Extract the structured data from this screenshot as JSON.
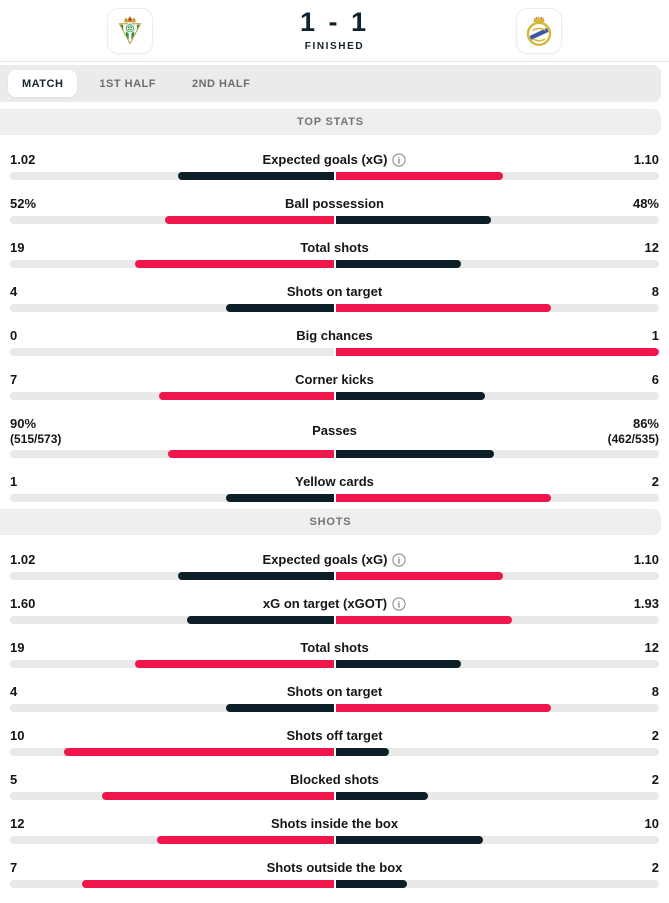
{
  "header": {
    "score": "1 - 1",
    "status": "FINISHED",
    "home_team_icon": "real-betis-crest-icon",
    "away_team_icon": "real-madrid-crest-icon"
  },
  "tabs": [
    {
      "label": "MATCH",
      "active": true
    },
    {
      "label": "1ST HALF",
      "active": false
    },
    {
      "label": "2ND HALF",
      "active": false
    }
  ],
  "colors": {
    "accent_red": "#ef164c",
    "accent_dark": "#0c1f28",
    "track": "#e9e9e9"
  },
  "icons": {
    "info": "info-circle-icon"
  },
  "sections": [
    {
      "title": "TOP STATS",
      "rows": [
        {
          "label": "Expected goals (xG)",
          "info": true,
          "left": "1.02",
          "right": "1.10",
          "left_num": 1.02,
          "right_num": 1.1
        },
        {
          "label": "Ball possession",
          "left": "52%",
          "right": "48%",
          "left_num": 52,
          "right_num": 48
        },
        {
          "label": "Total shots",
          "left": "19",
          "right": "12",
          "left_num": 19,
          "right_num": 12
        },
        {
          "label": "Shots on target",
          "left": "4",
          "right": "8",
          "left_num": 4,
          "right_num": 8
        },
        {
          "label": "Big chances",
          "left": "0",
          "right": "1",
          "left_num": 0,
          "right_num": 1
        },
        {
          "label": "Corner kicks",
          "left": "7",
          "right": "6",
          "left_num": 7,
          "right_num": 6
        },
        {
          "label": "Passes",
          "left": "90%",
          "left_sub": "(515/573)",
          "right": "86%",
          "right_sub": "(462/535)",
          "left_num": 90,
          "right_num": 86
        },
        {
          "label": "Yellow cards",
          "left": "1",
          "right": "2",
          "left_num": 1,
          "right_num": 2
        }
      ]
    },
    {
      "title": "SHOTS",
      "rows": [
        {
          "label": "Expected goals (xG)",
          "info": true,
          "left": "1.02",
          "right": "1.10",
          "left_num": 1.02,
          "right_num": 1.1
        },
        {
          "label": "xG on target (xGOT)",
          "info": true,
          "left": "1.60",
          "right": "1.93",
          "left_num": 1.6,
          "right_num": 1.93
        },
        {
          "label": "Total shots",
          "left": "19",
          "right": "12",
          "left_num": 19,
          "right_num": 12
        },
        {
          "label": "Shots on target",
          "left": "4",
          "right": "8",
          "left_num": 4,
          "right_num": 8
        },
        {
          "label": "Shots off target",
          "left": "10",
          "right": "2",
          "left_num": 10,
          "right_num": 2
        },
        {
          "label": "Blocked shots",
          "left": "5",
          "right": "2",
          "left_num": 5,
          "right_num": 2
        },
        {
          "label": "Shots inside the box",
          "left": "12",
          "right": "10",
          "left_num": 12,
          "right_num": 10
        },
        {
          "label": "Shots outside the box",
          "left": "7",
          "right": "2",
          "left_num": 7,
          "right_num": 2
        }
      ]
    }
  ]
}
